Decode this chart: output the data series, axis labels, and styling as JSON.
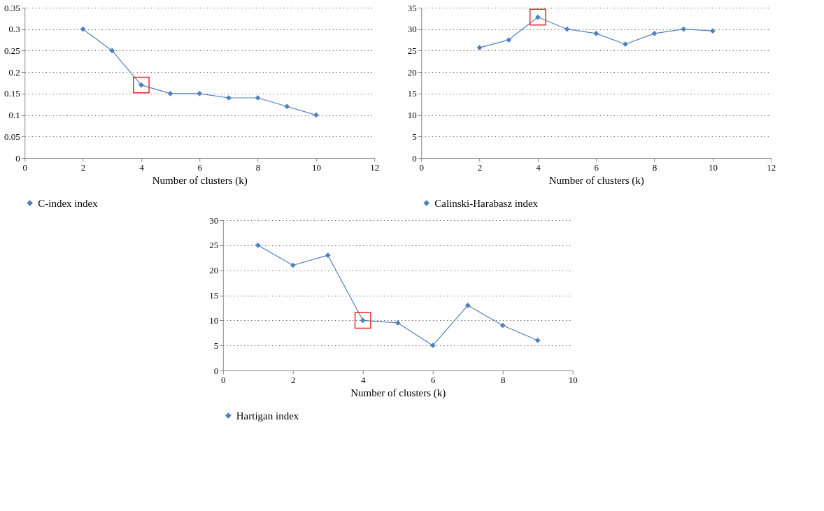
{
  "chart_data": [
    {
      "type": "line",
      "xlabel": "Number of clusters (k)",
      "x": [
        2,
        3,
        4,
        5,
        6,
        7,
        8,
        9,
        10
      ],
      "xlim": [
        0,
        12
      ],
      "xticks": [
        0,
        2,
        4,
        6,
        8,
        10,
        12
      ],
      "ylim": [
        0,
        0.35
      ],
      "yticks": [
        0,
        0.05,
        0.1,
        0.15,
        0.2,
        0.25,
        0.3,
        0.35
      ],
      "grid": "y",
      "legend": "bottom left",
      "marker": "diamond",
      "series": [
        {
          "name": "C-index index",
          "color": "#4f81bd",
          "values": [
            0.3,
            0.25,
            0.17,
            0.15,
            0.15,
            0.14,
            0.14,
            0.12,
            0.1
          ]
        },
        {
          "type": "scatter",
          "marker": "square",
          "color": "#e8292e",
          "values": [
            null,
            null,
            0.17,
            null,
            null,
            null,
            null,
            null,
            null
          ]
        }
      ]
    },
    {
      "type": "line",
      "xlabel": "Number of clusters (k)",
      "x": [
        2,
        3,
        4,
        5,
        6,
        7,
        8,
        9,
        10
      ],
      "xlim": [
        0,
        12
      ],
      "xticks": [
        0,
        2,
        4,
        6,
        8,
        10,
        12
      ],
      "ylim": [
        0,
        35
      ],
      "yticks": [
        0,
        5,
        10,
        15,
        20,
        25,
        30,
        35
      ],
      "grid": "y",
      "legend": "bottom left",
      "marker": "diamond",
      "series": [
        {
          "name": "Calinski-Harabasz index",
          "color": "#4f81bd",
          "values": [
            25.7,
            27.5,
            32.8,
            30,
            29,
            26.5,
            29,
            30,
            29.6
          ]
        },
        {
          "type": "scatter",
          "marker": "square",
          "color": "#e8292e",
          "values": [
            null,
            null,
            32.8,
            null,
            null,
            null,
            null,
            null,
            null
          ]
        }
      ]
    },
    {
      "type": "line",
      "xlabel": "Number of clusters (k)",
      "x": [
        1,
        2,
        3,
        4,
        5,
        6,
        7,
        8,
        9
      ],
      "xlim": [
        0,
        10
      ],
      "xticks": [
        0,
        2,
        4,
        6,
        8,
        10
      ],
      "ylim": [
        0,
        30
      ],
      "yticks": [
        0,
        5,
        10,
        15,
        20,
        25,
        30
      ],
      "grid": "y",
      "legend": "bottom left",
      "marker": "diamond",
      "series": [
        {
          "name": "Hartigan index",
          "color": "#4f81bd",
          "values": [
            25,
            21,
            23,
            10,
            9.5,
            5,
            13,
            9,
            6
          ]
        },
        {
          "type": "scatter",
          "marker": "square",
          "color": "#e8292e",
          "values": [
            null,
            null,
            null,
            10,
            null,
            null,
            null,
            null,
            null
          ]
        }
      ]
    }
  ]
}
